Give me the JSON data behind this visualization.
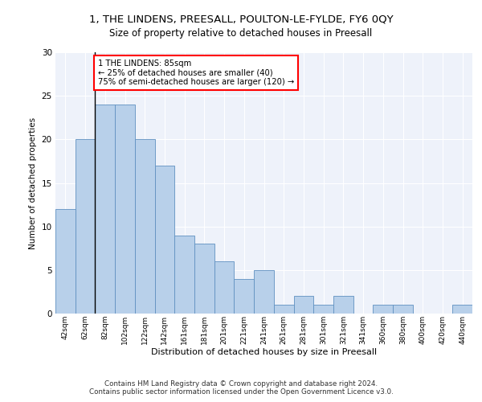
{
  "title1": "1, THE LINDENS, PREESALL, POULTON-LE-FYLDE, FY6 0QY",
  "title2": "Size of property relative to detached houses in Preesall",
  "xlabel": "Distribution of detached houses by size in Preesall",
  "ylabel": "Number of detached properties",
  "bar_labels": [
    "42sqm",
    "62sqm",
    "82sqm",
    "102sqm",
    "122sqm",
    "142sqm",
    "161sqm",
    "181sqm",
    "201sqm",
    "221sqm",
    "241sqm",
    "261sqm",
    "281sqm",
    "301sqm",
    "321sqm",
    "341sqm",
    "360sqm",
    "380sqm",
    "400sqm",
    "420sqm",
    "440sqm"
  ],
  "bar_heights": [
    12,
    20,
    24,
    24,
    20,
    17,
    9,
    8,
    6,
    4,
    5,
    1,
    2,
    1,
    2,
    0,
    1,
    1,
    0,
    0,
    1
  ],
  "bar_color": "#b8d0ea",
  "bar_edge_color": "#6090c0",
  "annotation_box_text": "1 THE LINDENS: 85sqm\n← 25% of detached houses are smaller (40)\n75% of semi-detached houses are larger (120) →",
  "annotation_box_color": "white",
  "annotation_box_edge_color": "red",
  "vline_color": "black",
  "ylim": [
    0,
    30
  ],
  "yticks": [
    0,
    5,
    10,
    15,
    20,
    25,
    30
  ],
  "background_color": "#eef2fa",
  "grid_color": "white",
  "footer": "Contains HM Land Registry data © Crown copyright and database right 2024.\nContains public sector information licensed under the Open Government Licence v3.0."
}
